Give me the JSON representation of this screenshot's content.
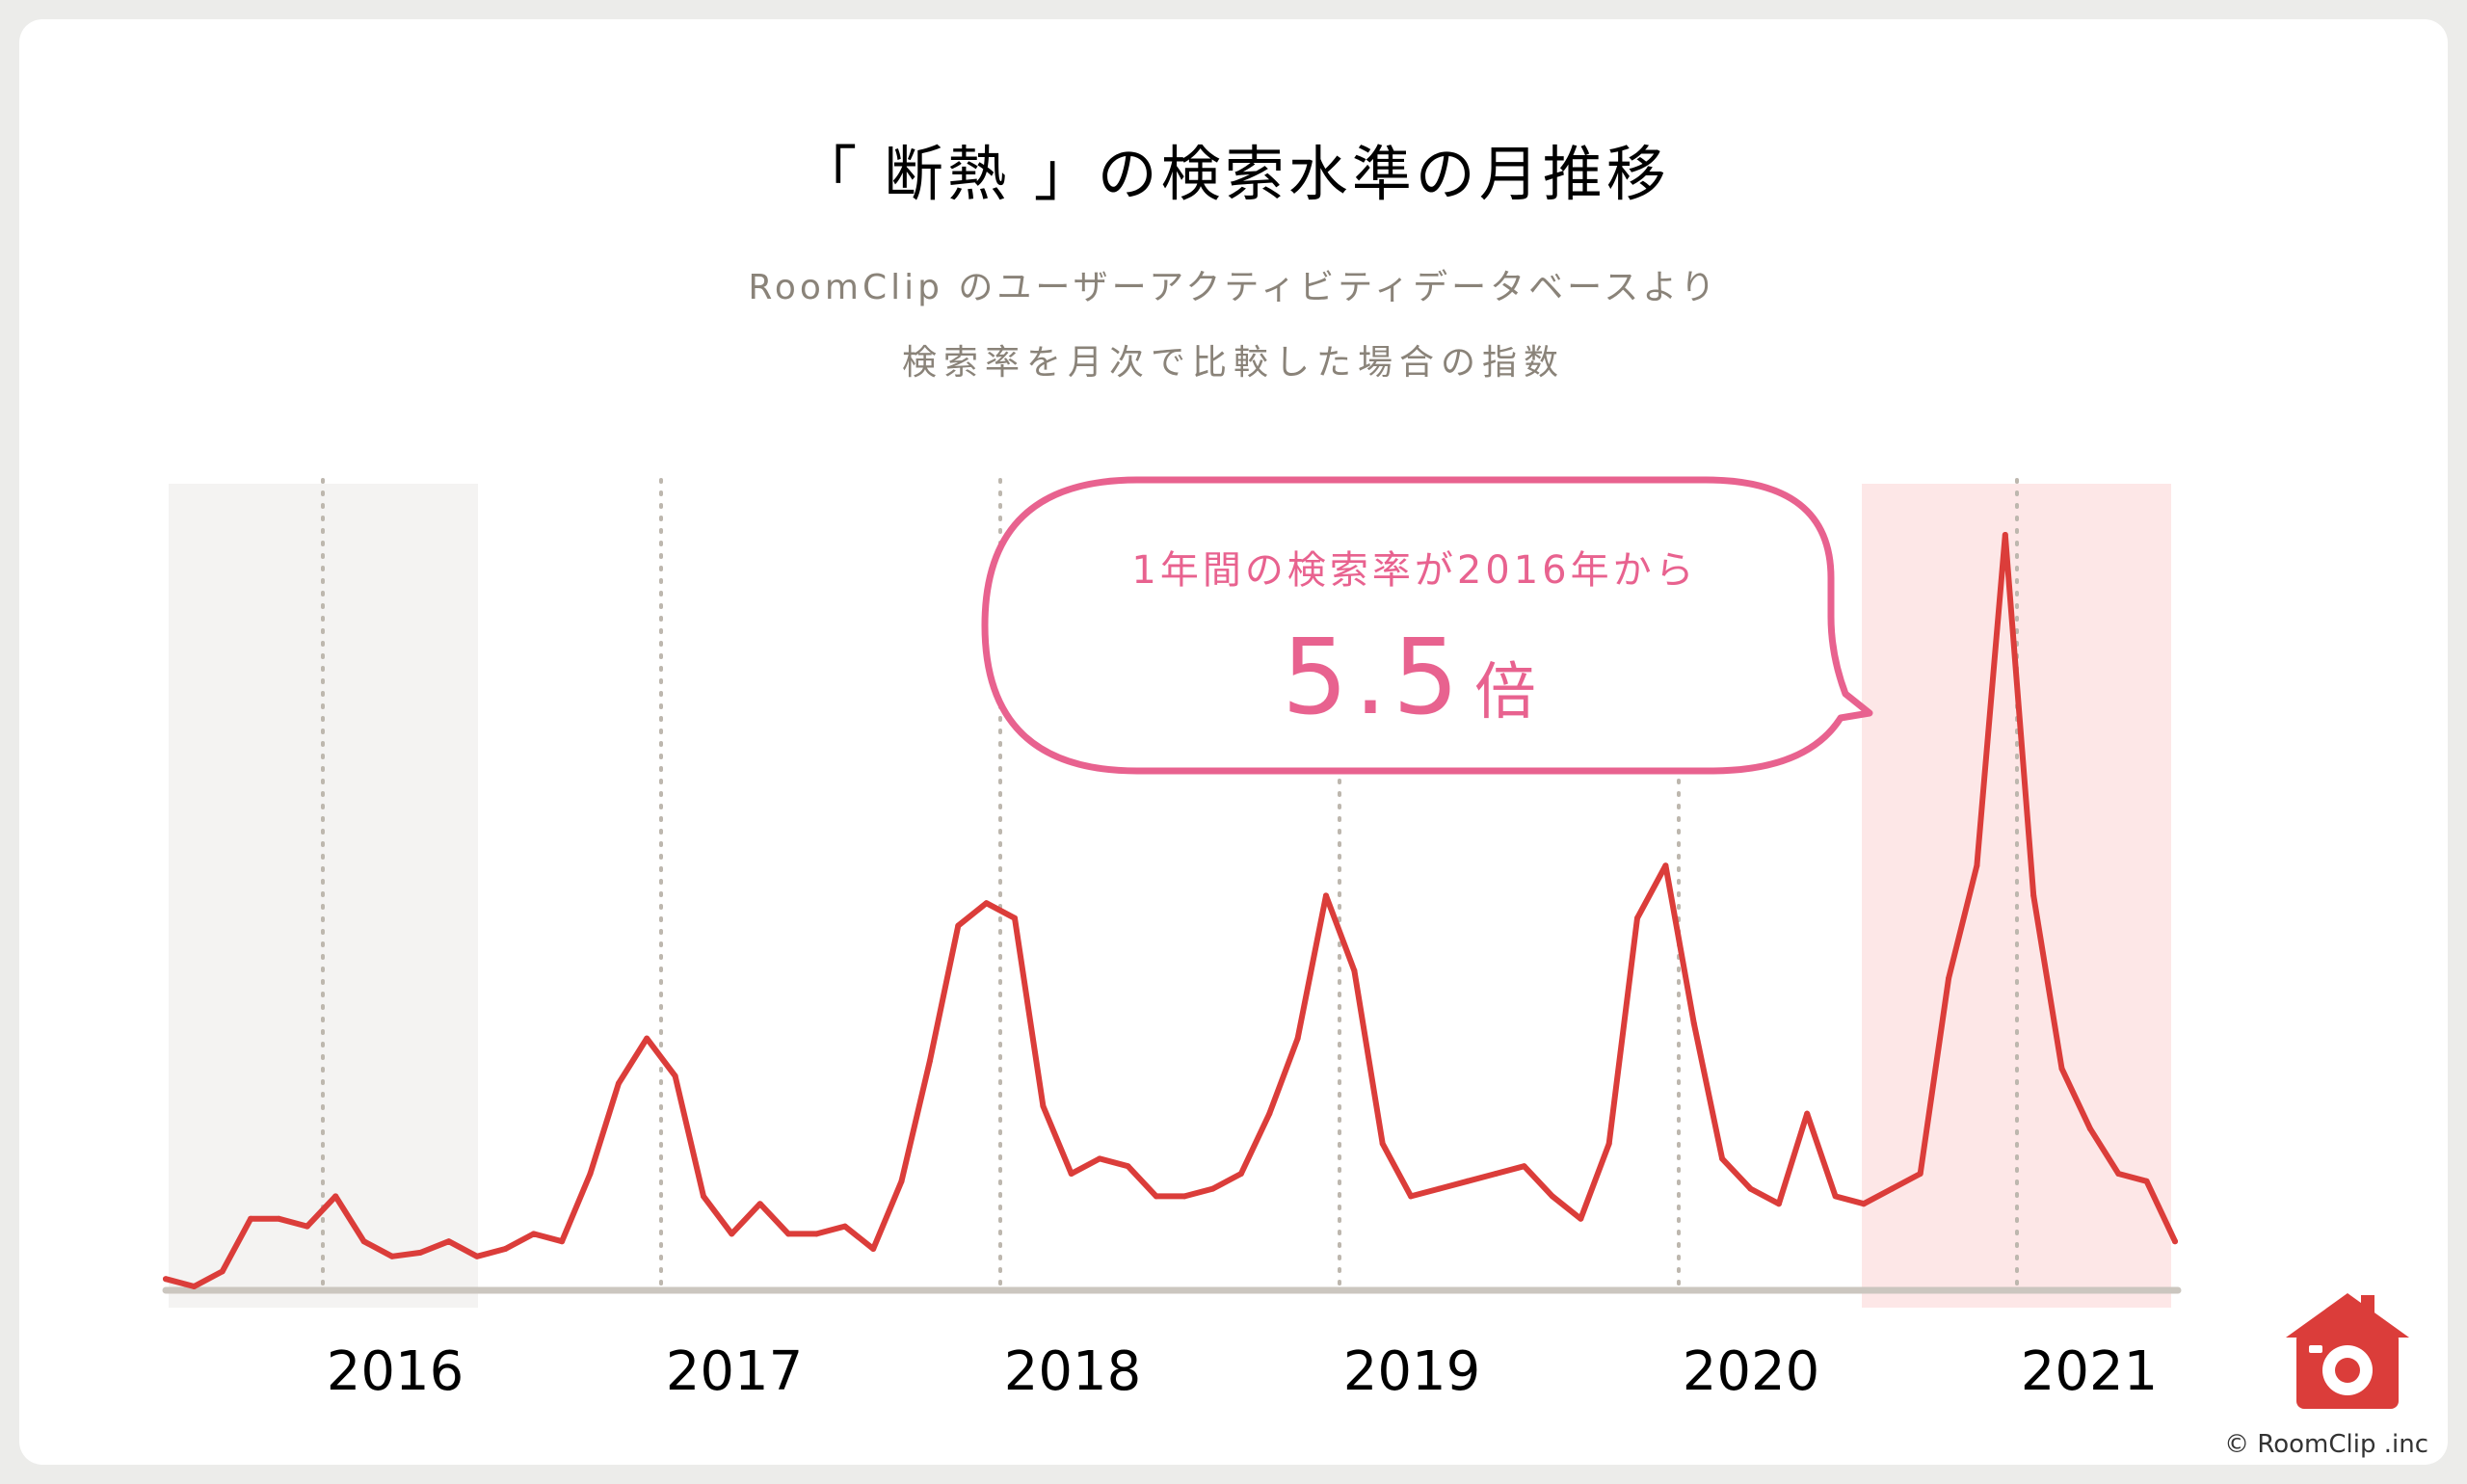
{
  "header": {
    "title": "「 断熱 」の検索水準の月推移",
    "subtitle_line1": "RoomClip のユーザーアクティビティデータベースより",
    "subtitle_line2": "検索率を月次で比較した場合の指数"
  },
  "callout": {
    "line1": "1年間の検索率が2016年から",
    "value": "5.5",
    "unit": "倍"
  },
  "footer": {
    "copyright": "© RoomClip .inc",
    "logo_icon": "roomclip-house-camera-icon"
  },
  "colors": {
    "line": "#db3d3a",
    "callout": "#e8628f",
    "highlight_2016": "#f4f3f2",
    "highlight_2021": "#fde7e7",
    "baseline": "#cbc6bf",
    "gridline": "#bdb7ae",
    "title": "#000000",
    "subtitle": "#8a8379",
    "logo": "#db3d3a"
  },
  "chart_data": {
    "type": "line",
    "title": "「 断熱 」の検索水準の月推移",
    "xlabel": "",
    "ylabel": "",
    "x_tick_labels": [
      "2016",
      "2017",
      "2018",
      "2019",
      "2020",
      "2021"
    ],
    "highlight_periods": [
      "2016",
      "2021"
    ],
    "grid": "vertical dotted lines at year boundaries",
    "ylim": [
      0,
      100
    ],
    "series": [
      {
        "values": [
          1,
          0,
          2,
          9,
          9,
          8,
          12,
          6,
          4,
          4.5,
          6,
          4,
          5,
          7,
          6,
          15,
          27,
          33,
          28,
          12,
          7,
          11,
          7,
          7,
          8,
          5,
          14,
          30,
          48,
          51,
          49,
          24,
          15,
          17,
          16,
          12,
          12,
          13,
          15,
          23,
          33,
          52,
          42,
          19,
          12,
          13,
          14,
          15,
          16,
          12,
          9,
          19,
          49,
          56,
          35,
          17,
          13,
          11,
          23,
          12,
          11,
          13,
          15,
          41,
          56,
          100,
          52,
          29,
          21,
          15,
          14,
          6
        ]
      }
    ]
  }
}
